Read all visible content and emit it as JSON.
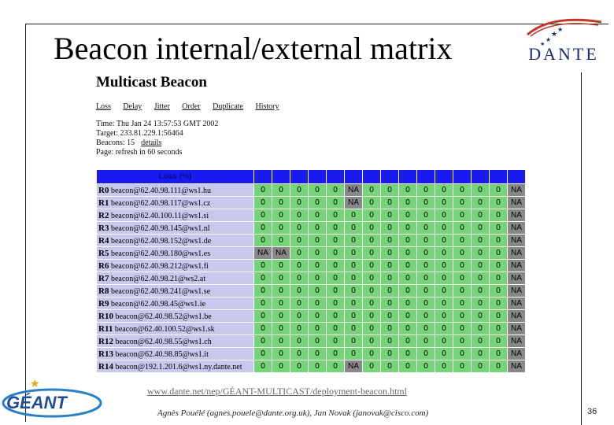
{
  "slide": {
    "title": "Beacon internal/external matrix",
    "logo_text": "DANTE",
    "url": "www.dante.net/nep/GÉANT-MULTICAST/deployment-beacon.html",
    "authors": "Agnès Pouélé (agnes.pouele@dante.org.uk), Jan Novak (janovak@cisco.com)",
    "page_number": "36",
    "footer_logo": "GÉANT"
  },
  "app": {
    "title": "Multicast Beacon",
    "nav": [
      "Loss",
      "Delay",
      "Jitter",
      "Order",
      "Duplicate",
      "History"
    ],
    "time": "Time: Thu Jan 24 13:57:53 GMT 2002",
    "target": "Target: 233.81.229.1:56464",
    "beacons_label": "Beacons: 15",
    "details_link": "details",
    "page_refresh": "Page: refresh in 60 seconds",
    "header_label": "Loss (%)"
  },
  "matrix": {
    "rows": [
      {
        "id": "R0",
        "label": "beacon@62.40.98.111@ws1.hu",
        "cells": [
          "0",
          "0",
          "0",
          "0",
          "0",
          "NA",
          "0",
          "0",
          "0",
          "0",
          "0",
          "0",
          "0",
          "0",
          "NA"
        ]
      },
      {
        "id": "R1",
        "label": "beacon@62.40.98.117@ws1.cz",
        "cells": [
          "0",
          "0",
          "0",
          "0",
          "0",
          "NA",
          "0",
          "0",
          "0",
          "0",
          "0",
          "0",
          "0",
          "0",
          "NA"
        ]
      },
      {
        "id": "R2",
        "label": "beacon@62.40.100.11@ws1.si",
        "cells": [
          "0",
          "0",
          "0",
          "0",
          "0",
          "0",
          "0",
          "0",
          "0",
          "0",
          "0",
          "0",
          "0",
          "0",
          "NA"
        ]
      },
      {
        "id": "R3",
        "label": "beacon@62.40.98.145@ws1.nl",
        "cells": [
          "0",
          "0",
          "0",
          "0",
          "0",
          "0",
          "0",
          "0",
          "0",
          "0",
          "0",
          "0",
          "0",
          "0",
          "NA"
        ]
      },
      {
        "id": "R4",
        "label": "beacon@62.40.98.152@ws1.de",
        "cells": [
          "0",
          "0",
          "0",
          "0",
          "0",
          "0",
          "0",
          "0",
          "0",
          "0",
          "0",
          "0",
          "0",
          "0",
          "NA"
        ]
      },
      {
        "id": "R5",
        "label": "beacon@62.40.98.180@ws1.es",
        "cells": [
          "NA",
          "NA",
          "0",
          "0",
          "0",
          "0",
          "0",
          "0",
          "0",
          "0",
          "0",
          "0",
          "0",
          "0",
          "NA"
        ]
      },
      {
        "id": "R6",
        "label": "beacon@62.40.98.212@ws1.fi",
        "cells": [
          "0",
          "0",
          "0",
          "0",
          "0",
          "0",
          "0",
          "0",
          "0",
          "0",
          "0",
          "0",
          "0",
          "0",
          "NA"
        ]
      },
      {
        "id": "R7",
        "label": "beacon@62.40.98.21@ws2.at",
        "cells": [
          "0",
          "0",
          "0",
          "0",
          "0",
          "0",
          "0",
          "0",
          "0",
          "0",
          "0",
          "0",
          "0",
          "0",
          "NA"
        ]
      },
      {
        "id": "R8",
        "label": "beacon@62.40.98.241@ws1.se",
        "cells": [
          "0",
          "0",
          "0",
          "0",
          "0",
          "0",
          "0",
          "0",
          "0",
          "0",
          "0",
          "0",
          "0",
          "0",
          "NA"
        ]
      },
      {
        "id": "R9",
        "label": "beacon@62.40.98.45@ws1.ie",
        "cells": [
          "0",
          "0",
          "0",
          "0",
          "0",
          "0",
          "0",
          "0",
          "0",
          "0",
          "0",
          "0",
          "0",
          "0",
          "NA"
        ]
      },
      {
        "id": "R10",
        "label": "beacon@62.40.98.52@ws1.be",
        "cells": [
          "0",
          "0",
          "0",
          "0",
          "0",
          "0",
          "0",
          "0",
          "0",
          "0",
          "0",
          "0",
          "0",
          "0",
          "NA"
        ]
      },
      {
        "id": "R11",
        "label": "beacon@62.40.100.52@ws1.sk",
        "cells": [
          "0",
          "0",
          "0",
          "0",
          "0",
          "0",
          "0",
          "0",
          "0",
          "0",
          "0",
          "0",
          "0",
          "0",
          "NA"
        ]
      },
      {
        "id": "R12",
        "label": "beacon@62.40.98.55@ws1.ch",
        "cells": [
          "0",
          "0",
          "0",
          "0",
          "0",
          "0",
          "0",
          "0",
          "0",
          "0",
          "0",
          "0",
          "0",
          "0",
          "NA"
        ]
      },
      {
        "id": "R13",
        "label": "beacon@62.40.98.85@ws1.it",
        "cells": [
          "0",
          "0",
          "0",
          "0",
          "0",
          "0",
          "0",
          "0",
          "0",
          "0",
          "0",
          "0",
          "0",
          "0",
          "NA"
        ]
      },
      {
        "id": "R14",
        "label": "beacon@192.1.201.6@ws1.ny.dante.net",
        "cells": [
          "0",
          "0",
          "0",
          "0",
          "0",
          "NA",
          "0",
          "0",
          "0",
          "0",
          "0",
          "0",
          "0",
          "0",
          "NA"
        ]
      }
    ]
  },
  "colors": {
    "header": "#1a1aee",
    "row_label_bg": "#c8c8ef",
    "ok_cell": "#74d477",
    "na_cell": "#888888",
    "logo_blue": "#1a2f7a",
    "logo_red": "#c0392b"
  }
}
